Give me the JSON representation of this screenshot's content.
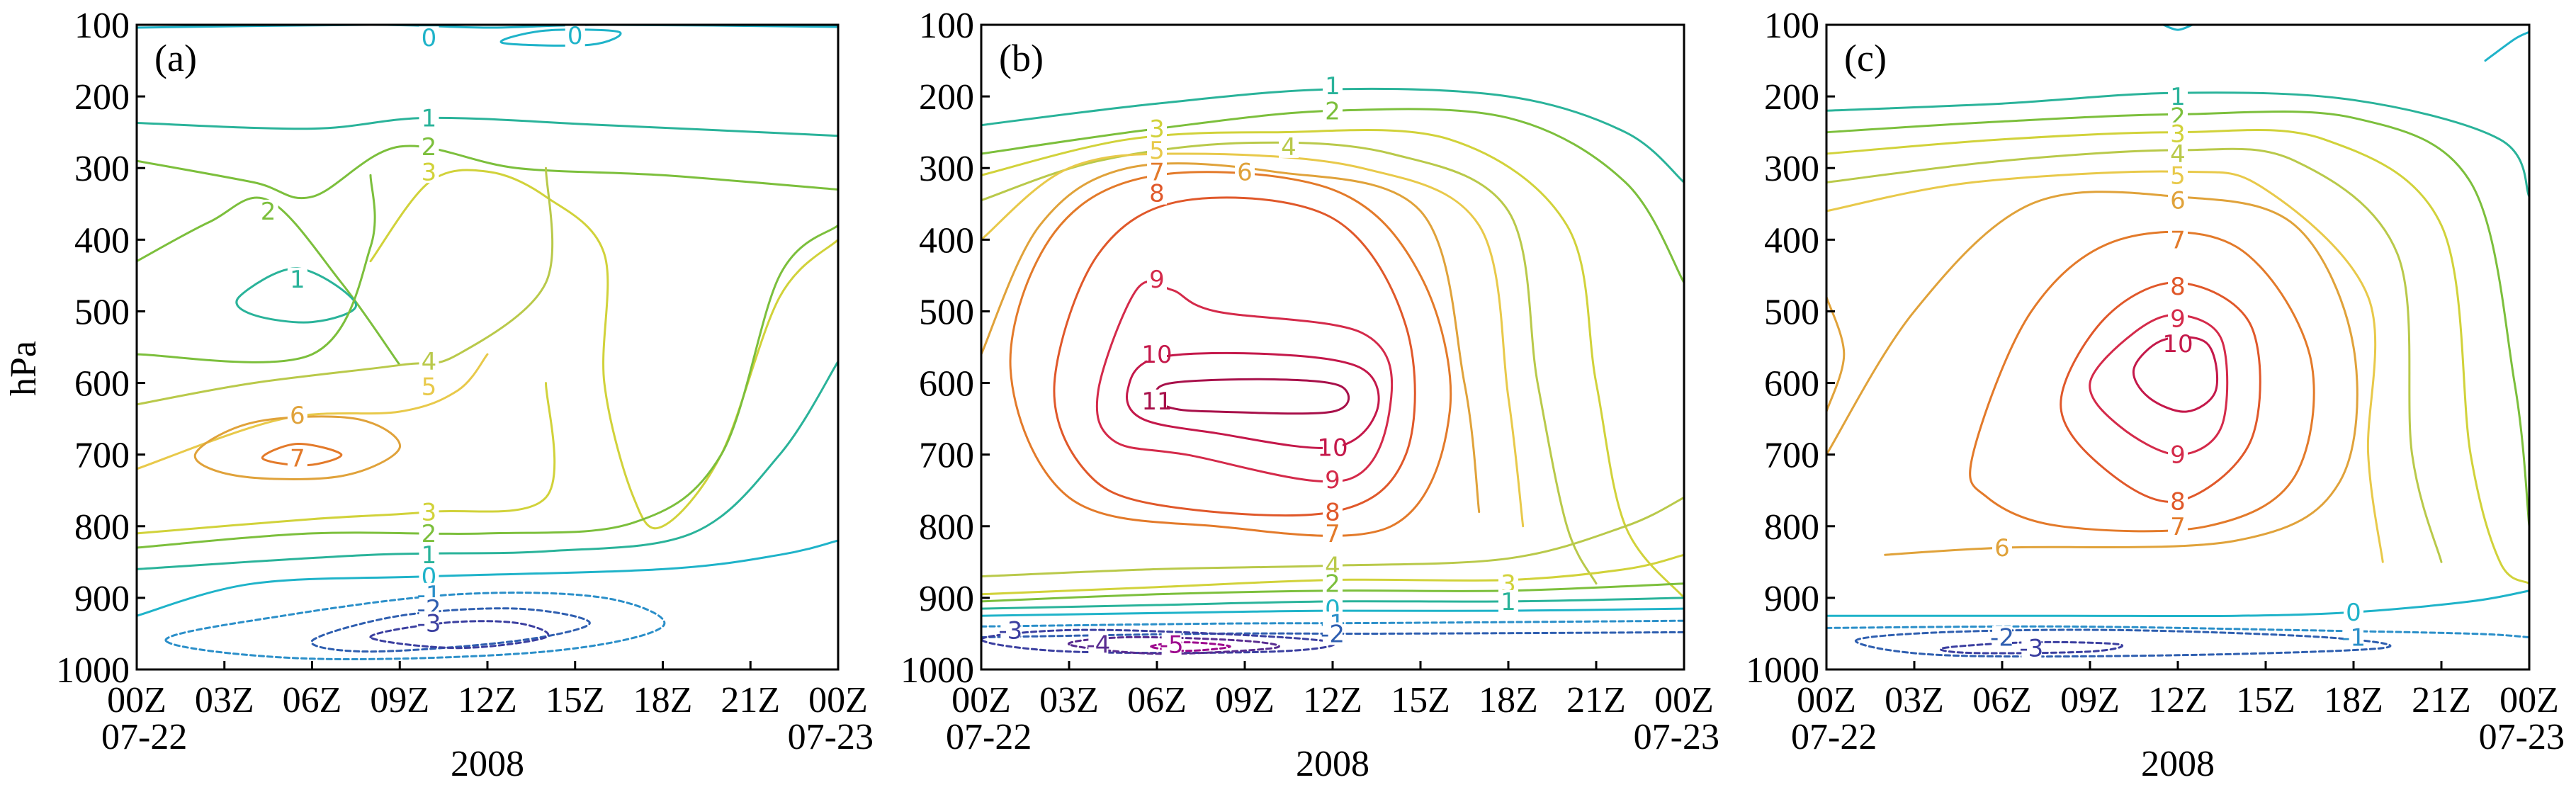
{
  "figure": {
    "y_axis_label": "hPa",
    "x_axis_label": "2008",
    "y_ticks": [
      "100",
      "200",
      "300",
      "400",
      "500",
      "600",
      "700",
      "800",
      "900",
      "1000"
    ],
    "x_ticks": [
      "00Z",
      "03Z",
      "06Z",
      "09Z",
      "12Z",
      "15Z",
      "18Z",
      "21Z",
      "00Z"
    ],
    "x_date_start": "07-22",
    "x_date_end": "07-23"
  },
  "colors": {
    "-5": "#9e0a8e",
    "-4": "#5a2d91",
    "-3": "#3b3fa0",
    "-2": "#2f5fb0",
    "-1": "#2b8fc9",
    "0": "#1fb3c9",
    "1": "#2ab39a",
    "2": "#7cbf3c",
    "3": "#d1d23a",
    "4": "#b9c94a",
    "5": "#e8c94a",
    "6": "#e0a23a",
    "7": "#e37a2a",
    "8": "#e0582a",
    "9": "#d42a4a",
    "10": "#c4184a",
    "11": "#a8104a"
  },
  "chart_data": [
    {
      "panel": "(a)",
      "type": "contour",
      "x_range": [
        "07-22 00Z",
        "07-23 00Z"
      ],
      "y_range": [
        100,
        1000
      ],
      "y_axis_inverted": true,
      "contour_labels": [
        {
          "level": 0,
          "x": 10,
          "y": 118
        },
        {
          "level": 0,
          "x": 15,
          "y": 115
        },
        {
          "level": 1,
          "x": 10,
          "y": 230
        },
        {
          "level": 2,
          "x": 10,
          "y": 270
        },
        {
          "level": 3,
          "x": 10,
          "y": 305
        },
        {
          "level": 2,
          "x": 4.5,
          "y": 360
        },
        {
          "level": 1,
          "x": 5.5,
          "y": 455
        },
        {
          "level": 4,
          "x": 10,
          "y": 570
        },
        {
          "level": 5,
          "x": 10,
          "y": 605
        },
        {
          "level": 6,
          "x": 5.5,
          "y": 645
        },
        {
          "level": 7,
          "x": 5.5,
          "y": 705
        },
        {
          "level": 3,
          "x": 10,
          "y": 780
        },
        {
          "level": 2,
          "x": 10,
          "y": 810
        },
        {
          "level": 1,
          "x": 10,
          "y": 840
        },
        {
          "level": 0,
          "x": 10,
          "y": 870
        },
        {
          "level": -1,
          "x": 10,
          "y": 895
        },
        {
          "level": -2,
          "x": 10,
          "y": 915
        },
        {
          "level": -3,
          "x": 10,
          "y": 935
        }
      ]
    },
    {
      "panel": "(b)",
      "type": "contour",
      "x_range": [
        "07-22 00Z",
        "07-23 00Z"
      ],
      "y_range": [
        100,
        1000
      ],
      "y_axis_inverted": true,
      "contour_labels": [
        {
          "level": 1,
          "x": 12,
          "y": 185
        },
        {
          "level": 2,
          "x": 12,
          "y": 220
        },
        {
          "level": 3,
          "x": 6,
          "y": 245
        },
        {
          "level": 4,
          "x": 10.5,
          "y": 270
        },
        {
          "level": 5,
          "x": 6,
          "y": 275
        },
        {
          "level": 6,
          "x": 9,
          "y": 305
        },
        {
          "level": 7,
          "x": 6,
          "y": 305
        },
        {
          "level": 8,
          "x": 6,
          "y": 335
        },
        {
          "level": 9,
          "x": 6,
          "y": 455
        },
        {
          "level": 10,
          "x": 6,
          "y": 560
        },
        {
          "level": 11,
          "x": 6,
          "y": 625
        },
        {
          "level": 10,
          "x": 12,
          "y": 690
        },
        {
          "level": 9,
          "x": 12,
          "y": 735
        },
        {
          "level": 8,
          "x": 12,
          "y": 780
        },
        {
          "level": 7,
          "x": 12,
          "y": 810
        },
        {
          "level": 4,
          "x": 12,
          "y": 855
        },
        {
          "level": 2,
          "x": 12,
          "y": 880
        },
        {
          "level": 3,
          "x": 18,
          "y": 880
        },
        {
          "level": 1,
          "x": 18,
          "y": 905
        },
        {
          "level": 0,
          "x": 12,
          "y": 915
        },
        {
          "level": -1,
          "x": 12,
          "y": 935
        },
        {
          "level": -2,
          "x": 12,
          "y": 950
        },
        {
          "level": -3,
          "x": 1,
          "y": 945
        },
        {
          "level": -4,
          "x": 4,
          "y": 965
        },
        {
          "level": -5,
          "x": 6.5,
          "y": 965
        }
      ]
    },
    {
      "panel": "(c)",
      "type": "contour",
      "x_range": [
        "07-22 00Z",
        "07-23 00Z"
      ],
      "y_range": [
        100,
        1000
      ],
      "y_axis_inverted": true,
      "contour_labels": [
        {
          "level": 1,
          "x": 12,
          "y": 200
        },
        {
          "level": 2,
          "x": 12,
          "y": 228
        },
        {
          "level": 3,
          "x": 12,
          "y": 252
        },
        {
          "level": 4,
          "x": 12,
          "y": 280
        },
        {
          "level": 5,
          "x": 12,
          "y": 310
        },
        {
          "level": 6,
          "x": 12,
          "y": 345
        },
        {
          "level": 7,
          "x": 12,
          "y": 400
        },
        {
          "level": 8,
          "x": 12,
          "y": 465
        },
        {
          "level": 9,
          "x": 12,
          "y": 510
        },
        {
          "level": 10,
          "x": 12,
          "y": 545
        },
        {
          "level": 9,
          "x": 12,
          "y": 700
        },
        {
          "level": 8,
          "x": 12,
          "y": 765
        },
        {
          "level": 7,
          "x": 12,
          "y": 800
        },
        {
          "level": 6,
          "x": 6,
          "y": 830
        },
        {
          "level": 0,
          "x": 18,
          "y": 920
        },
        {
          "level": -1,
          "x": 18,
          "y": 955
        },
        {
          "level": -2,
          "x": 6,
          "y": 955
        },
        {
          "level": -3,
          "x": 7,
          "y": 970
        }
      ]
    }
  ]
}
